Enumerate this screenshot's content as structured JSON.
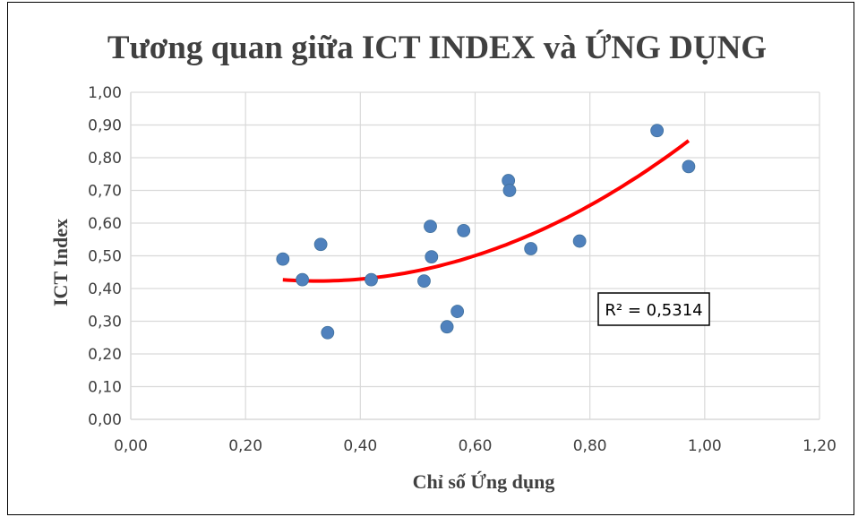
{
  "chart_data": {
    "type": "scatter",
    "title": "Tương quan giữa ICT INDEX và ỨNG DỤNG",
    "xlabel": "Chỉ số Ứng dụng",
    "ylabel": "ICT Index",
    "xlim": [
      0,
      1.2
    ],
    "ylim": [
      0,
      1.0
    ],
    "x_ticks": [
      "0,00",
      "0,20",
      "0,40",
      "0,60",
      "0,80",
      "1,00",
      "1,20"
    ],
    "y_ticks": [
      "0,00",
      "0,10",
      "0,20",
      "0,30",
      "0,40",
      "0,50",
      "0,60",
      "0,70",
      "0,80",
      "0,90",
      "1,00"
    ],
    "grid": true,
    "marker_color": "#4f81bd",
    "trendline_color": "#ff0000",
    "series": [
      {
        "points": [
          [
            0.265,
            0.49
          ],
          [
            0.299,
            0.427
          ],
          [
            0.331,
            0.535
          ],
          [
            0.343,
            0.265
          ],
          [
            0.419,
            0.427
          ],
          [
            0.511,
            0.423
          ],
          [
            0.522,
            0.59
          ],
          [
            0.524,
            0.497
          ],
          [
            0.551,
            0.283
          ],
          [
            0.569,
            0.33
          ],
          [
            0.58,
            0.577
          ],
          [
            0.658,
            0.73
          ],
          [
            0.66,
            0.7
          ],
          [
            0.697,
            0.522
          ],
          [
            0.782,
            0.545
          ],
          [
            0.917,
            0.883
          ],
          [
            0.972,
            0.773
          ]
        ]
      }
    ],
    "trendline": {
      "type": "polynomial",
      "order": 2,
      "x_range": [
        0.265,
        0.972
      ],
      "y_at_start": 0.427,
      "y_at_end": 0.852,
      "min_point": [
        0.325,
        0.423
      ],
      "r_squared_label": "R² = 0,5314"
    }
  }
}
